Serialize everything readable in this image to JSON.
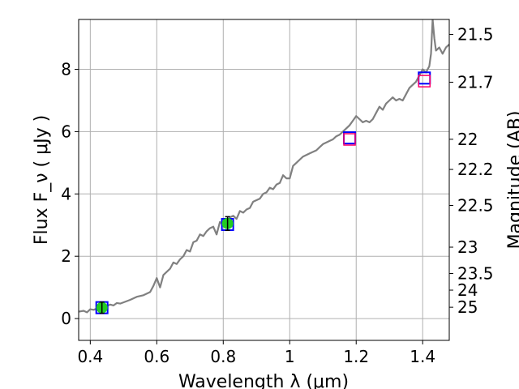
{
  "chart_data": {
    "type": "line",
    "xlabel": "Wavelength  λ (μm)",
    "ylabel": "Flux  F_ν  ( μJy )",
    "y2label": "Magnitude (AB)",
    "xlim": [
      0.365,
      1.48
    ],
    "ylim": [
      -0.7,
      9.6
    ],
    "grid": true,
    "x_ticks": [
      {
        "value": 0.4,
        "label": "0.4"
      },
      {
        "value": 0.6,
        "label": "0.6"
      },
      {
        "value": 0.8,
        "label": "0.8"
      },
      {
        "value": 1.0,
        "label": "1"
      },
      {
        "value": 1.2,
        "label": "1.2"
      },
      {
        "value": 1.4,
        "label": "1.4"
      }
    ],
    "y_ticks": [
      {
        "value": 0,
        "label": "0"
      },
      {
        "value": 2,
        "label": "2"
      },
      {
        "value": 4,
        "label": "4"
      },
      {
        "value": 6,
        "label": "6"
      },
      {
        "value": 8,
        "label": "8"
      }
    ],
    "y2_ticks": [
      {
        "mag": 21.5,
        "label": "21.5"
      },
      {
        "mag": 21.7,
        "label": "21.7"
      },
      {
        "mag": 22.0,
        "label": "22"
      },
      {
        "mag": 22.2,
        "label": "22.2"
      },
      {
        "mag": 22.5,
        "label": "22.5"
      },
      {
        "mag": 23.0,
        "label": "23"
      },
      {
        "mag": 23.5,
        "label": "23.5"
      },
      {
        "mag": 24.0,
        "label": "24"
      },
      {
        "mag": 25.0,
        "label": "25"
      }
    ],
    "series": [
      {
        "style": "model_spectrum",
        "color": "#808080",
        "x": [
          0.365,
          0.38,
          0.39,
          0.4,
          0.41,
          0.42,
          0.43,
          0.44,
          0.45,
          0.46,
          0.47,
          0.48,
          0.49,
          0.5,
          0.52,
          0.54,
          0.56,
          0.58,
          0.59,
          0.6,
          0.61,
          0.62,
          0.63,
          0.64,
          0.65,
          0.66,
          0.67,
          0.68,
          0.69,
          0.7,
          0.71,
          0.72,
          0.73,
          0.74,
          0.75,
          0.76,
          0.77,
          0.78,
          0.79,
          0.8,
          0.81,
          0.82,
          0.83,
          0.84,
          0.85,
          0.86,
          0.87,
          0.88,
          0.89,
          0.9,
          0.91,
          0.92,
          0.93,
          0.94,
          0.95,
          0.96,
          0.97,
          0.98,
          0.99,
          1.0,
          1.01,
          1.02,
          1.03,
          1.04,
          1.05,
          1.06,
          1.07,
          1.08,
          1.09,
          1.1,
          1.11,
          1.12,
          1.13,
          1.14,
          1.15,
          1.16,
          1.17,
          1.18,
          1.19,
          1.2,
          1.21,
          1.22,
          1.23,
          1.24,
          1.25,
          1.26,
          1.27,
          1.28,
          1.29,
          1.3,
          1.31,
          1.32,
          1.33,
          1.34,
          1.35,
          1.36,
          1.37,
          1.38,
          1.39,
          1.4,
          1.41,
          1.42,
          1.425,
          1.43,
          1.435,
          1.44,
          1.45,
          1.46,
          1.47,
          1.48
        ],
        "y": [
          0.22,
          0.25,
          0.2,
          0.3,
          0.28,
          0.32,
          0.38,
          0.36,
          0.4,
          0.45,
          0.42,
          0.5,
          0.48,
          0.52,
          0.6,
          0.7,
          0.75,
          0.85,
          1.05,
          1.3,
          1.0,
          1.4,
          1.5,
          1.6,
          1.8,
          1.75,
          1.9,
          2.0,
          2.2,
          2.15,
          2.45,
          2.5,
          2.7,
          2.65,
          2.8,
          2.9,
          2.95,
          2.7,
          3.1,
          3.0,
          3.1,
          3.25,
          3.3,
          3.2,
          3.45,
          3.4,
          3.5,
          3.55,
          3.75,
          3.8,
          3.85,
          4.0,
          4.05,
          4.2,
          4.15,
          4.3,
          4.35,
          4.6,
          4.5,
          4.5,
          4.9,
          5.0,
          5.1,
          5.2,
          5.25,
          5.3,
          5.35,
          5.4,
          5.5,
          5.6,
          5.65,
          5.7,
          5.75,
          5.85,
          5.9,
          6.0,
          6.1,
          6.2,
          6.35,
          6.5,
          6.4,
          6.3,
          6.35,
          6.3,
          6.4,
          6.6,
          6.8,
          6.7,
          6.9,
          7.0,
          7.1,
          7.0,
          7.05,
          7.0,
          7.2,
          7.4,
          7.5,
          7.6,
          7.8,
          8.0,
          7.9,
          8.1,
          8.5,
          9.6,
          9.0,
          8.6,
          8.7,
          8.5,
          8.7,
          8.8
        ]
      },
      {
        "name": "",
        "style": "synthetic_photometry",
        "marker": "square",
        "color": "#0000ff",
        "x": [
          0.435,
          0.813,
          1.18,
          1.405
        ],
        "y": [
          0.35,
          3.02,
          5.8,
          7.72
        ]
      },
      {
        "name": "",
        "style": "upper_limits",
        "marker": "square",
        "color": "#ff0066",
        "x": [
          1.18,
          1.405
        ],
        "y": [
          5.75,
          7.62
        ]
      },
      {
        "name": "",
        "style": "observed_photometry",
        "marker": "circle",
        "color": "#22cc22",
        "x": [
          0.435,
          0.813
        ],
        "y": [
          0.35,
          3.05
        ],
        "yerr": [
          0.18,
          0.22
        ]
      }
    ]
  }
}
